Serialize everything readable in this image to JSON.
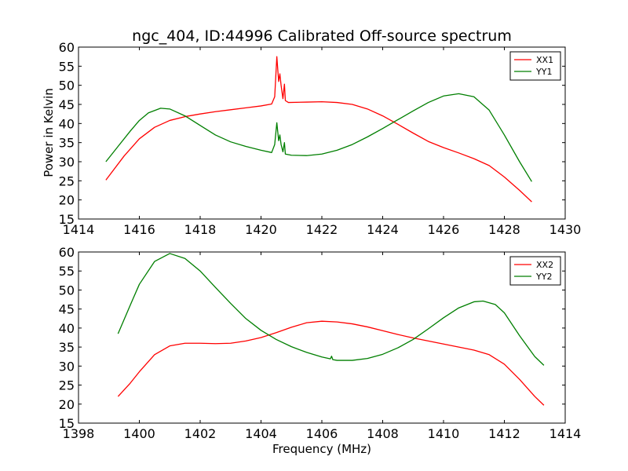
{
  "chart_data": [
    {
      "type": "line",
      "title": "ngc_404, ID:44996 Calibrated Off-source spectrum",
      "xlabel": "",
      "ylabel": "Power in Kelvin",
      "xlim": [
        1414,
        1430
      ],
      "ylim": [
        15,
        60
      ],
      "xticks": [
        1414,
        1416,
        1418,
        1420,
        1422,
        1424,
        1426,
        1428,
        1430
      ],
      "yticks": [
        15,
        20,
        25,
        30,
        35,
        40,
        45,
        50,
        55,
        60
      ],
      "grid": false,
      "legend_position": "top-right",
      "series": [
        {
          "name": "XX1",
          "color": "#ff0000",
          "points": [
            [
              1414.9,
              25.2
            ],
            [
              1415.5,
              31.5
            ],
            [
              1416.0,
              36.0
            ],
            [
              1416.5,
              39.0
            ],
            [
              1417.0,
              40.8
            ],
            [
              1417.5,
              41.8
            ],
            [
              1418.0,
              42.5
            ],
            [
              1418.5,
              43.1
            ],
            [
              1419.0,
              43.6
            ],
            [
              1419.5,
              44.1
            ],
            [
              1420.0,
              44.6
            ],
            [
              1420.35,
              45.1
            ],
            [
              1420.45,
              47.0
            ],
            [
              1420.52,
              57.5
            ],
            [
              1420.58,
              51.0
            ],
            [
              1420.62,
              53.0
            ],
            [
              1420.66,
              50.0
            ],
            [
              1420.72,
              46.5
            ],
            [
              1420.77,
              50.3
            ],
            [
              1420.8,
              46.0
            ],
            [
              1420.9,
              45.5
            ],
            [
              1421.5,
              45.6
            ],
            [
              1422.0,
              45.7
            ],
            [
              1422.5,
              45.5
            ],
            [
              1423.0,
              45.0
            ],
            [
              1423.5,
              43.8
            ],
            [
              1424.0,
              42.0
            ],
            [
              1424.5,
              39.8
            ],
            [
              1425.0,
              37.5
            ],
            [
              1425.5,
              35.3
            ],
            [
              1426.0,
              33.7
            ],
            [
              1426.5,
              32.3
            ],
            [
              1427.0,
              30.8
            ],
            [
              1427.5,
              29.0
            ],
            [
              1428.0,
              26.0
            ],
            [
              1428.5,
              22.5
            ],
            [
              1428.9,
              19.5
            ]
          ]
        },
        {
          "name": "YY1",
          "color": "#007f00",
          "points": [
            [
              1414.9,
              30.0
            ],
            [
              1415.3,
              34.0
            ],
            [
              1415.7,
              38.0
            ],
            [
              1416.0,
              40.8
            ],
            [
              1416.3,
              42.8
            ],
            [
              1416.7,
              44.0
            ],
            [
              1417.0,
              43.8
            ],
            [
              1417.5,
              42.0
            ],
            [
              1418.0,
              39.5
            ],
            [
              1418.5,
              37.0
            ],
            [
              1419.0,
              35.2
            ],
            [
              1419.5,
              34.0
            ],
            [
              1420.0,
              33.0
            ],
            [
              1420.35,
              32.4
            ],
            [
              1420.45,
              34.5
            ],
            [
              1420.52,
              40.2
            ],
            [
              1420.58,
              35.5
            ],
            [
              1420.62,
              37.0
            ],
            [
              1420.66,
              34.5
            ],
            [
              1420.72,
              32.6
            ],
            [
              1420.77,
              35.0
            ],
            [
              1420.8,
              32.0
            ],
            [
              1421.0,
              31.7
            ],
            [
              1421.5,
              31.6
            ],
            [
              1422.0,
              32.0
            ],
            [
              1422.5,
              33.0
            ],
            [
              1423.0,
              34.5
            ],
            [
              1423.5,
              36.5
            ],
            [
              1424.0,
              38.7
            ],
            [
              1424.5,
              41.0
            ],
            [
              1425.0,
              43.3
            ],
            [
              1425.5,
              45.5
            ],
            [
              1426.0,
              47.2
            ],
            [
              1426.5,
              47.8
            ],
            [
              1427.0,
              47.0
            ],
            [
              1427.5,
              43.5
            ],
            [
              1428.0,
              37.0
            ],
            [
              1428.5,
              30.0
            ],
            [
              1428.9,
              24.8
            ]
          ]
        }
      ]
    },
    {
      "type": "line",
      "title": "",
      "xlabel": "Frequency (MHz)",
      "ylabel": "",
      "xlim": [
        1398,
        1414
      ],
      "ylim": [
        15,
        60
      ],
      "xticks": [
        1398,
        1400,
        1402,
        1404,
        1406,
        1408,
        1410,
        1412,
        1414
      ],
      "yticks": [
        15,
        20,
        25,
        30,
        35,
        40,
        45,
        50,
        55,
        60
      ],
      "grid": false,
      "legend_position": "top-right",
      "series": [
        {
          "name": "XX2",
          "color": "#ff0000",
          "points": [
            [
              1399.3,
              22.0
            ],
            [
              1399.7,
              25.5
            ],
            [
              1400.0,
              28.5
            ],
            [
              1400.5,
              33.0
            ],
            [
              1401.0,
              35.3
            ],
            [
              1401.5,
              36.0
            ],
            [
              1402.0,
              36.0
            ],
            [
              1402.5,
              35.9
            ],
            [
              1403.0,
              36.0
            ],
            [
              1403.5,
              36.6
            ],
            [
              1404.0,
              37.5
            ],
            [
              1404.5,
              38.8
            ],
            [
              1405.0,
              40.2
            ],
            [
              1405.5,
              41.4
            ],
            [
              1406.0,
              41.8
            ],
            [
              1406.5,
              41.6
            ],
            [
              1407.0,
              41.1
            ],
            [
              1407.5,
              40.3
            ],
            [
              1408.0,
              39.3
            ],
            [
              1408.5,
              38.3
            ],
            [
              1409.0,
              37.4
            ],
            [
              1409.5,
              36.6
            ],
            [
              1410.0,
              35.8
            ],
            [
              1410.5,
              35.0
            ],
            [
              1411.0,
              34.2
            ],
            [
              1411.5,
              33.0
            ],
            [
              1412.0,
              30.5
            ],
            [
              1412.5,
              26.5
            ],
            [
              1413.0,
              22.0
            ],
            [
              1413.3,
              19.7
            ]
          ]
        },
        {
          "name": "YY2",
          "color": "#007f00",
          "points": [
            [
              1399.3,
              38.5
            ],
            [
              1399.7,
              46.0
            ],
            [
              1400.0,
              51.5
            ],
            [
              1400.5,
              57.5
            ],
            [
              1401.0,
              59.6
            ],
            [
              1401.5,
              58.3
            ],
            [
              1402.0,
              55.0
            ],
            [
              1402.5,
              50.7
            ],
            [
              1403.0,
              46.5
            ],
            [
              1403.5,
              42.5
            ],
            [
              1404.0,
              39.4
            ],
            [
              1404.5,
              37.0
            ],
            [
              1405.0,
              35.1
            ],
            [
              1405.5,
              33.6
            ],
            [
              1406.0,
              32.4
            ],
            [
              1406.28,
              31.9
            ],
            [
              1406.32,
              32.6
            ],
            [
              1406.36,
              31.7
            ],
            [
              1406.5,
              31.5
            ],
            [
              1407.0,
              31.5
            ],
            [
              1407.5,
              32.0
            ],
            [
              1408.0,
              33.1
            ],
            [
              1408.5,
              34.8
            ],
            [
              1409.0,
              37.0
            ],
            [
              1409.5,
              39.8
            ],
            [
              1410.0,
              42.7
            ],
            [
              1410.5,
              45.3
            ],
            [
              1411.0,
              46.9
            ],
            [
              1411.3,
              47.1
            ],
            [
              1411.7,
              46.2
            ],
            [
              1412.0,
              44.0
            ],
            [
              1412.5,
              38.0
            ],
            [
              1413.0,
              32.5
            ],
            [
              1413.3,
              30.2
            ]
          ]
        }
      ]
    }
  ]
}
